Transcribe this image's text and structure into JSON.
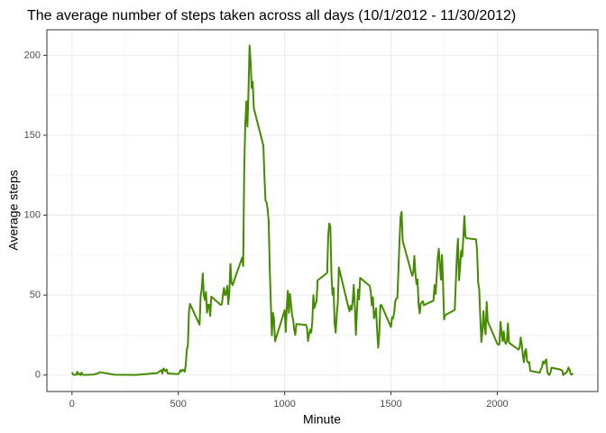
{
  "chart_data": {
    "type": "line",
    "title": "The average number of steps taken across all days (10/1/2012 - 11/30/2012)",
    "x_label": "Minute",
    "y_label": "Average steps",
    "xlim": [
      -118,
      2473
    ],
    "ylim": [
      -10.3,
      216
    ],
    "xticks": [
      0,
      500,
      1000,
      1500,
      2000
    ],
    "yticks": [
      0,
      50,
      100,
      150,
      200
    ],
    "grid": true,
    "x": [
      0,
      5,
      10,
      15,
      20,
      25,
      30,
      35,
      40,
      45,
      50,
      55,
      100,
      125,
      130,
      200,
      300,
      400,
      420,
      425,
      430,
      440,
      445,
      450,
      500,
      505,
      510,
      515,
      520,
      525,
      530,
      535,
      540,
      545,
      550,
      555,
      600,
      605,
      610,
      615,
      620,
      625,
      630,
      635,
      640,
      645,
      650,
      655,
      700,
      705,
      710,
      715,
      720,
      725,
      730,
      735,
      740,
      745,
      750,
      755,
      800,
      805,
      810,
      815,
      820,
      825,
      830,
      835,
      840,
      845,
      850,
      855,
      900,
      905,
      910,
      915,
      920,
      925,
      930,
      935,
      940,
      945,
      950,
      955,
      1000,
      1005,
      1010,
      1015,
      1020,
      1025,
      1030,
      1035,
      1040,
      1045,
      1050,
      1055,
      1100,
      1105,
      1110,
      1115,
      1120,
      1125,
      1130,
      1135,
      1140,
      1145,
      1150,
      1155,
      1200,
      1205,
      1210,
      1215,
      1220,
      1225,
      1230,
      1235,
      1240,
      1245,
      1250,
      1255,
      1300,
      1305,
      1310,
      1315,
      1320,
      1325,
      1330,
      1335,
      1340,
      1345,
      1350,
      1355,
      1400,
      1405,
      1410,
      1415,
      1420,
      1425,
      1430,
      1435,
      1440,
      1445,
      1450,
      1455,
      1500,
      1505,
      1510,
      1515,
      1520,
      1525,
      1530,
      1535,
      1540,
      1545,
      1550,
      1555,
      1600,
      1605,
      1610,
      1615,
      1620,
      1625,
      1630,
      1635,
      1640,
      1645,
      1650,
      1655,
      1700,
      1705,
      1710,
      1715,
      1720,
      1725,
      1730,
      1735,
      1740,
      1745,
      1750,
      1755,
      1800,
      1805,
      1810,
      1815,
      1820,
      1825,
      1830,
      1835,
      1840,
      1845,
      1850,
      1855,
      1900,
      1905,
      1910,
      1915,
      1920,
      1925,
      1930,
      1935,
      1940,
      1945,
      1950,
      1955,
      2000,
      2005,
      2010,
      2015,
      2020,
      2025,
      2030,
      2035,
      2040,
      2045,
      2050,
      2055,
      2100,
      2105,
      2110,
      2115,
      2120,
      2125,
      2130,
      2135,
      2140,
      2145,
      2150,
      2155,
      2200,
      2205,
      2210,
      2215,
      2220,
      2225,
      2230,
      2235,
      2240,
      2245,
      2250,
      2255,
      2300,
      2305,
      2310,
      2315,
      2320,
      2325,
      2330,
      2335,
      2340,
      2345,
      2350,
      2355
    ],
    "series": [
      {
        "color": "#458b00",
        "values": [
          1.7,
          0.3,
          0.1,
          0.2,
          0.1,
          2.1,
          0.5,
          0.9,
          0,
          1.5,
          0.3,
          0.1,
          0.3,
          1.1,
          1.8,
          0.2,
          0.1,
          1.2,
          3.1,
          1.0,
          4.1,
          2.5,
          3.5,
          1.0,
          0.6,
          1.5,
          3.0,
          2.2,
          3.3,
          3.0,
          2.1,
          6.1,
          16.0,
          18.3,
          39.5,
          44.5,
          31.5,
          49.3,
          53.8,
          63.5,
          50.0,
          47.0,
          52.0,
          39.0,
          44.0,
          44.0,
          37.0,
          49.0,
          43.8,
          44.4,
          50.5,
          54.5,
          49.9,
          50.9,
          55.7,
          44.3,
          52.3,
          69.5,
          57.8,
          56.2,
          73.4,
          68.2,
          129.4,
          157.5,
          171.2,
          155.4,
          177.3,
          206.2,
          195.9,
          179.6,
          183.4,
          167.0,
          143.5,
          124.0,
          109.1,
          108.1,
          103.7,
          96.0,
          66.2,
          45.2,
          24.8,
          38.8,
          35.0,
          21.1,
          40.6,
          27.0,
          42.4,
          52.7,
          38.9,
          50.8,
          44.3,
          37.4,
          34.7,
          28.3,
          25.1,
          31.9,
          31.4,
          29.7,
          21.3,
          25.5,
          28.4,
          26.5,
          33.4,
          50.0,
          42.0,
          44.6,
          46.0,
          59.2,
          63.9,
          87.7,
          94.8,
          92.8,
          63.4,
          50.2,
          54.5,
          32.4,
          26.5,
          37.7,
          45.1,
          67.3,
          42.3,
          39.9,
          43.3,
          41.0,
          46.2,
          56.4,
          42.8,
          25.1,
          40.0,
          53.5,
          47.3,
          60.8,
          55.8,
          52.0,
          43.6,
          48.7,
          35.5,
          37.5,
          41.8,
          27.5,
          17.1,
          26.1,
          43.6,
          43.8,
          30.0,
          36.1,
          35.5,
          38.8,
          46.0,
          47.8,
          48.1,
          65.3,
          82.9,
          98.7,
          102.1,
          84.0,
          62.1,
          64.1,
          74.5,
          63.2,
          56.9,
          59.8,
          43.9,
          38.6,
          44.7,
          45.5,
          46.2,
          43.7,
          46.6,
          56.3,
          50.7,
          61.2,
          73.4,
          79.0,
          68.9,
          59.7,
          75.1,
          56.5,
          34.8,
          37.5,
          40.7,
          58.0,
          74.7,
          85.3,
          59.3,
          67.8,
          77.7,
          74.2,
          85.3,
          99.5,
          86.6,
          85.6,
          84.9,
          77.8,
          58.0,
          53.4,
          36.3,
          20.7,
          27.4,
          40.0,
          30.2,
          25.5,
          45.7,
          33.5,
          19.6,
          19.0,
          19.3,
          33.3,
          26.8,
          21.2,
          27.3,
          21.3,
          19.5,
          21.3,
          32.3,
          20.2,
          15.9,
          17.2,
          23.5,
          19.2,
          12.5,
          8.0,
          14.7,
          16.3,
          8.7,
          7.8,
          8.1,
          2.6,
          1.5,
          3.7,
          4.8,
          8.5,
          7.1,
          8.7,
          9.8,
          2.2,
          0.3,
          0.1,
          1.6,
          4.6,
          3.3,
          2.8,
          0,
          0.8,
          1.0,
          1.6,
          2.6,
          4.7,
          3.3,
          0.6,
          0.2,
          1.1
        ]
      }
    ]
  }
}
